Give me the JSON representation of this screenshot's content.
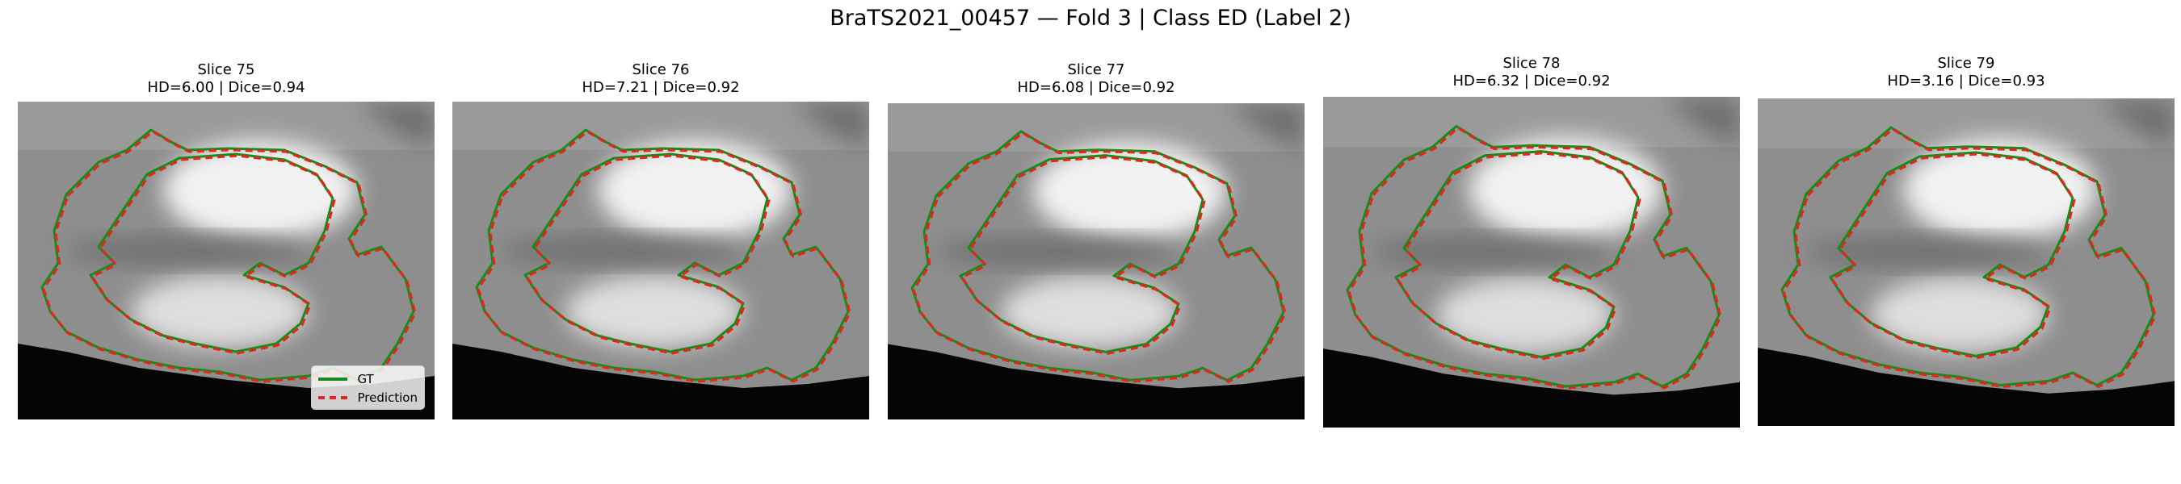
{
  "figure": {
    "title": "BraTS2021_00457 — Fold 3 | Class ED (Label 2)"
  },
  "legend": {
    "gt_label": "GT",
    "pred_label": "Prediction"
  },
  "colors": {
    "gt": "#1a8a1a",
    "prediction": "#e8231a"
  },
  "panels": [
    {
      "slice": "Slice 75",
      "metrics": "HD=6.00 | Dice=0.94"
    },
    {
      "slice": "Slice 76",
      "metrics": "HD=7.21 | Dice=0.92"
    },
    {
      "slice": "Slice 77",
      "metrics": "HD=6.08 | Dice=0.92"
    },
    {
      "slice": "Slice 78",
      "metrics": "HD=6.32 | Dice=0.92"
    },
    {
      "slice": "Slice 79",
      "metrics": "HD=3.16 | Dice=0.93"
    }
  ]
}
